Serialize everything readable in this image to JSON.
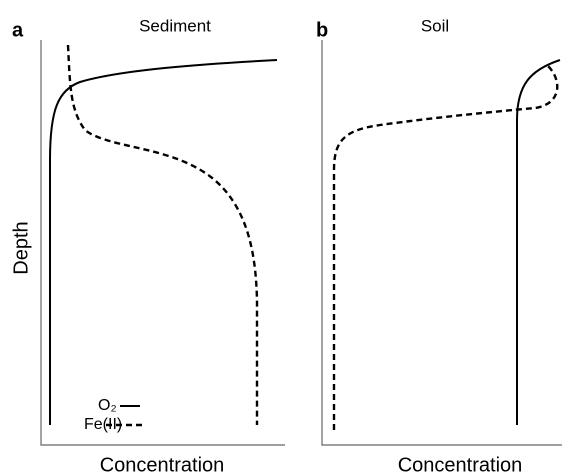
{
  "panels": [
    {
      "letter": "a",
      "title": "Sediment",
      "x_label": "Concentration"
    },
    {
      "letter": "b",
      "title": "Soil",
      "x_label": "Concentration"
    }
  ],
  "y_label": "Depth",
  "legend": [
    "O₂",
    "Fe(II)"
  ]
}
